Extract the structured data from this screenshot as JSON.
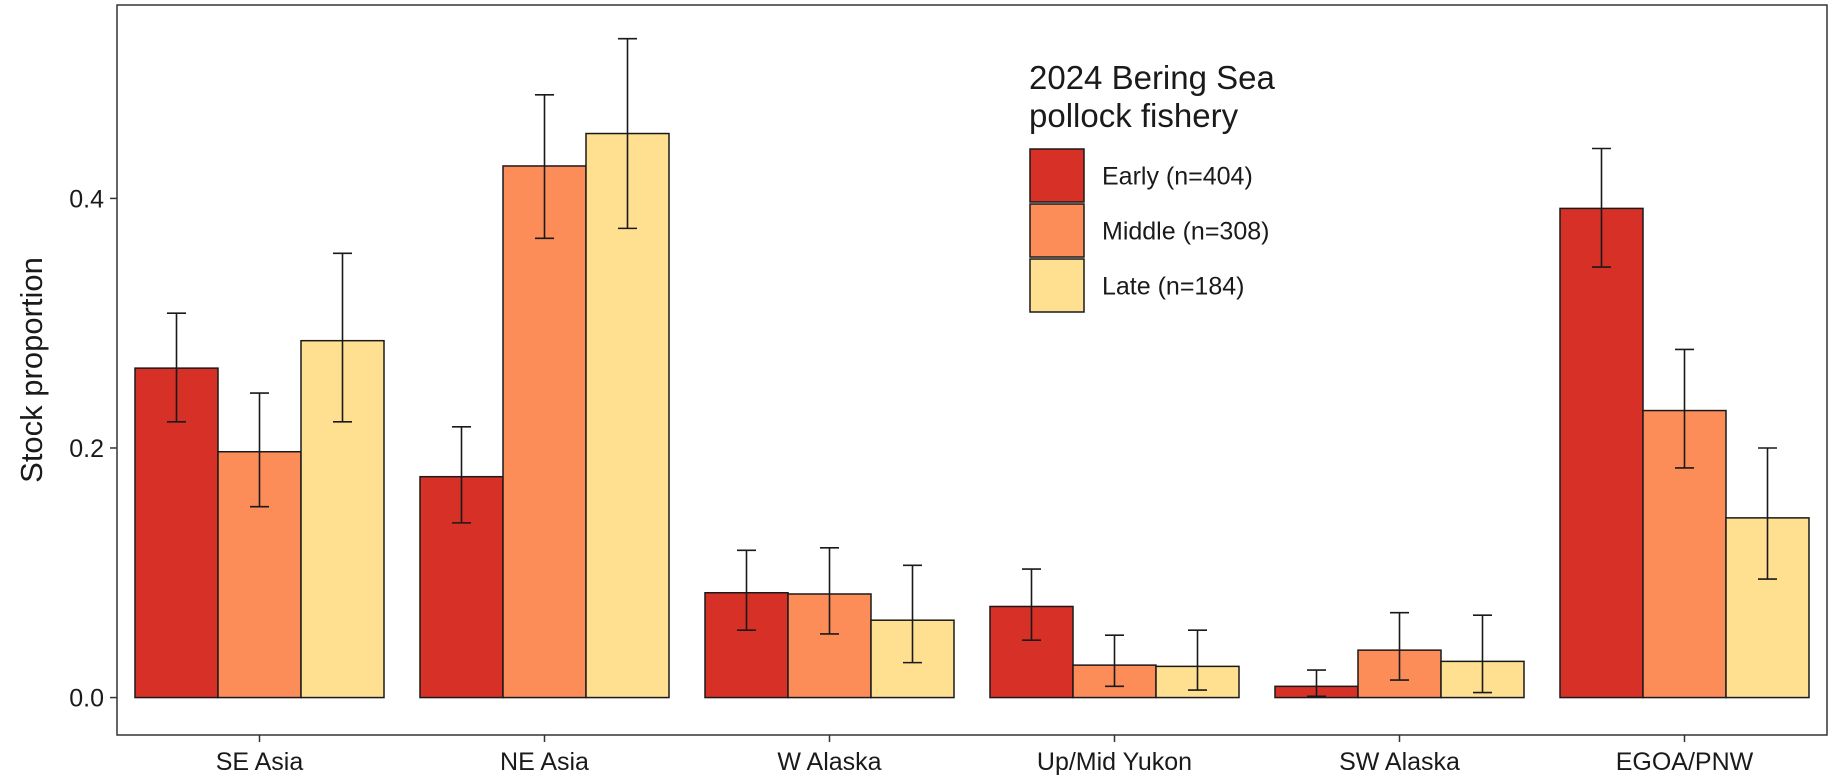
{
  "chart_data": {
    "type": "bar",
    "title": "",
    "xlabel": "",
    "ylabel": "Stock proportion",
    "ylim": [
      -0.03,
      0.555
    ],
    "yticks": [
      0.0,
      0.2,
      0.4
    ],
    "ytick_labels": [
      "0.0",
      "0.2",
      "0.4"
    ],
    "grid": false,
    "categories": [
      "SE Asia",
      "NE Asia",
      "W Alaska",
      "Up/Mid Yukon",
      "SW Alaska",
      "EGOA/PNW"
    ],
    "legend": {
      "title_lines": [
        "2024 Bering Sea",
        "pollock fishery"
      ],
      "position": "top-center"
    },
    "series": [
      {
        "name": "Early (n=404)",
        "color": "#d73027",
        "values": [
          0.264,
          0.177,
          0.084,
          0.073,
          0.009,
          0.392
        ],
        "lower": [
          0.221,
          0.14,
          0.054,
          0.046,
          0.001,
          0.345
        ],
        "upper": [
          0.308,
          0.217,
          0.118,
          0.103,
          0.022,
          0.44
        ]
      },
      {
        "name": "Middle (n=308)",
        "color": "#fc8d59",
        "values": [
          0.197,
          0.426,
          0.083,
          0.026,
          0.038,
          0.23
        ],
        "lower": [
          0.153,
          0.368,
          0.051,
          0.009,
          0.014,
          0.184
        ],
        "upper": [
          0.244,
          0.483,
          0.12,
          0.05,
          0.068,
          0.279
        ]
      },
      {
        "name": "Late (n=184)",
        "color": "#fee090",
        "values": [
          0.286,
          0.452,
          0.062,
          0.025,
          0.029,
          0.144
        ],
        "lower": [
          0.221,
          0.376,
          0.028,
          0.006,
          0.004,
          0.095
        ],
        "upper": [
          0.356,
          0.528,
          0.106,
          0.054,
          0.066,
          0.2
        ]
      }
    ]
  }
}
